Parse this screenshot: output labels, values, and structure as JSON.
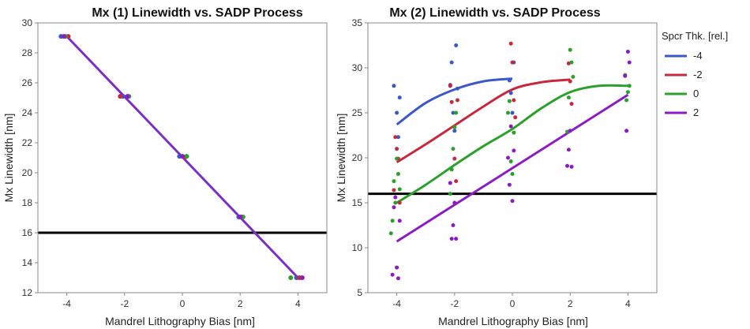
{
  "chart_data": [
    {
      "type": "scatter",
      "title": "Mx (1) Linewidth vs. SADP Process",
      "xlabel": "Mandrel Lithography Bias [nm]",
      "ylabel": "Mx Linewidth [nm]",
      "xlim": [
        -5,
        5
      ],
      "ylim": [
        12,
        30
      ],
      "xticks": [
        -4,
        -2,
        0,
        2,
        4
      ],
      "yticks": [
        12,
        14,
        16,
        18,
        20,
        22,
        24,
        26,
        28,
        30
      ],
      "reference_line": 16,
      "fit_color": "#7b2fc7",
      "series": [
        {
          "color": "#3a58c8",
          "x": [
            -4.2,
            -2.05,
            -0.1,
            1.95,
            3.95
          ],
          "y": [
            29.1,
            25.1,
            21.1,
            17.05,
            13.0
          ]
        },
        {
          "color": "#c8283c",
          "x": [
            -3.95,
            -2.15,
            0.1,
            2.05,
            4.05
          ],
          "y": [
            29.1,
            25.1,
            21.05,
            17.05,
            13.0
          ]
        },
        {
          "color": "#2ca02c",
          "x": [
            -4.05,
            -1.85,
            0.15,
            2.1,
            3.75
          ],
          "y": [
            29.1,
            25.1,
            21.1,
            17.05,
            13.0
          ]
        },
        {
          "color": "#8b1cc4",
          "x": [
            -4.1,
            -1.9,
            0.0,
            2.0,
            4.15
          ],
          "y": [
            29.1,
            25.1,
            21.1,
            17.05,
            13.0
          ]
        }
      ],
      "fit": {
        "x": [
          -4,
          4
        ],
        "y": [
          29.1,
          13.0
        ]
      }
    },
    {
      "type": "scatter",
      "title": "Mx (2) Linewidth vs. SADP Process",
      "xlabel": "Mandrel Lithography Bias [nm]",
      "ylabel": "Mx Linewidth [nm]",
      "xlim": [
        -5,
        5
      ],
      "ylim": [
        5,
        35
      ],
      "xticks": [
        -4,
        -2,
        0,
        2,
        4
      ],
      "yticks": [
        5,
        10,
        15,
        20,
        25,
        30,
        35
      ],
      "reference_line": 16,
      "legend": {
        "title": "Spcr Thk. [rel.]",
        "position": "right"
      },
      "series": [
        {
          "name": "-4",
          "color": "#3a58c8",
          "points_x": [
            -4.1,
            -4.0,
            -3.95,
            -3.9,
            -2.15,
            -2.1,
            -2.05,
            -2.0,
            -1.95,
            -1.9,
            -0.1,
            -0.05,
            0.0,
            0.05
          ],
          "points_y": [
            28.0,
            25.0,
            22.3,
            26.7,
            28.1,
            30.6,
            25.0,
            23.0,
            32.5,
            27.7,
            28.6,
            27.2,
            25.0,
            30.6
          ],
          "fit_x": [
            -4,
            -3,
            -2,
            -1,
            0
          ],
          "fit_y": [
            23.7,
            26.1,
            27.6,
            28.5,
            28.8
          ]
        },
        {
          "name": "-2",
          "color": "#c8283c",
          "points_x": [
            -4.1,
            -4.05,
            -4.0,
            -3.95,
            -3.9,
            -2.15,
            -2.1,
            -2.0,
            -1.95,
            -1.9,
            -0.05,
            0.0,
            0.05,
            0.1,
            1.95,
            2.0,
            2.05
          ],
          "points_y": [
            16.4,
            22.3,
            21.0,
            19.9,
            15.0,
            28.0,
            26.2,
            19.9,
            17.4,
            26.4,
            32.7,
            30.6,
            26.4,
            24.5,
            30.5,
            28.5,
            26.0
          ],
          "fit_x": [
            -4,
            -3,
            -2,
            -1,
            0,
            1,
            2
          ],
          "fit_y": [
            19.5,
            21.5,
            23.6,
            25.7,
            27.6,
            28.4,
            28.7
          ]
        },
        {
          "name": "0",
          "color": "#2ca02c",
          "points_x": [
            -4.2,
            -4.15,
            -4.1,
            -4.05,
            -4.0,
            -3.95,
            -3.9,
            -2.15,
            -2.1,
            -2.05,
            -2.0,
            -1.95,
            -0.15,
            -0.1,
            -0.05,
            0.0,
            0.05,
            1.9,
            1.95,
            2.0,
            2.05,
            2.1,
            3.9,
            3.95,
            4.0,
            4.05
          ],
          "points_y": [
            11.6,
            13.0,
            17.4,
            15.0,
            19.9,
            18.2,
            16.5,
            16.0,
            18.7,
            21.0,
            23.4,
            25.0,
            25.0,
            26.3,
            19.6,
            18.2,
            22.8,
            22.9,
            26.7,
            32.0,
            30.6,
            29.0,
            29.2,
            26.4,
            27.3,
            28.0
          ],
          "fit_x": [
            -4,
            -3,
            -2,
            -1,
            0,
            1,
            2,
            3,
            4
          ],
          "fit_y": [
            15.0,
            17.0,
            19.2,
            21.3,
            23.2,
            25.5,
            27.3,
            28.0,
            28.0
          ],
          "fit_smooth": true
        },
        {
          "name": "2",
          "color": "#8b1cc4",
          "points_x": [
            -4.15,
            -4.1,
            -4.05,
            -4.0,
            -3.95,
            -3.9,
            -2.15,
            -2.1,
            -2.05,
            -2.0,
            -1.95,
            -0.15,
            -0.1,
            -0.05,
            0.0,
            0.05,
            1.9,
            1.95,
            2.0,
            2.05,
            3.9,
            3.95,
            4.0,
            4.05
          ],
          "points_y": [
            7.0,
            14.5,
            15.6,
            7.8,
            6.6,
            13.0,
            17.2,
            11.0,
            12.5,
            15.0,
            11.0,
            20.0,
            17.0,
            23.5,
            15.2,
            20.8,
            19.1,
            20.9,
            23.0,
            19.0,
            29.1,
            23.0,
            31.8,
            30.6
          ],
          "fit_x": [
            -4,
            4
          ],
          "fit_y": [
            10.7,
            27.0
          ]
        }
      ]
    }
  ]
}
